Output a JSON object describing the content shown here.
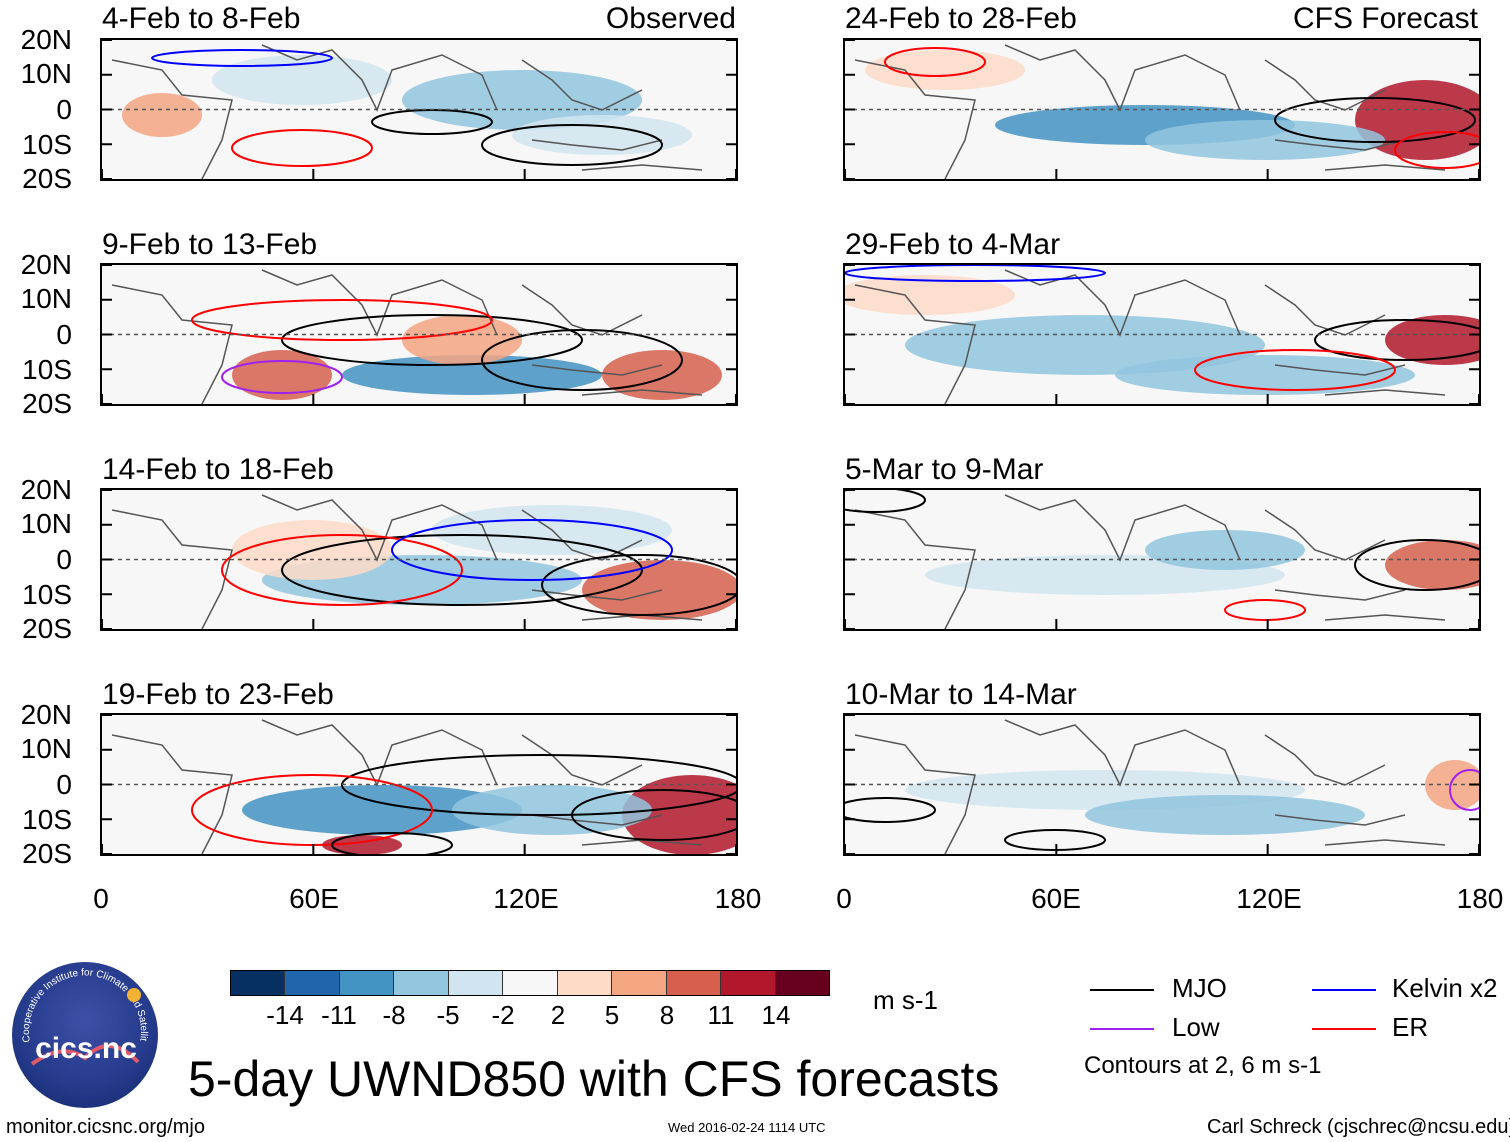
{
  "panels": [
    {
      "title": "4-Feb to 8-Feb",
      "tag": "Observed"
    },
    {
      "title": "24-Feb to 28-Feb",
      "tag": "CFS Forecast"
    },
    {
      "title": "9-Feb to 13-Feb",
      "tag": ""
    },
    {
      "title": "29-Feb to 4-Mar",
      "tag": ""
    },
    {
      "title": "14-Feb to 18-Feb",
      "tag": ""
    },
    {
      "title": "5-Mar to 9-Mar",
      "tag": ""
    },
    {
      "title": "19-Feb to 23-Feb",
      "tag": ""
    },
    {
      "title": "10-Mar to 14-Mar",
      "tag": ""
    }
  ],
  "lat_labels": [
    "20N",
    "10N",
    "0",
    "10S",
    "20S"
  ],
  "lon_labels": [
    "0",
    "60E",
    "120E",
    "180"
  ],
  "colorbar": {
    "levels": [
      "-14",
      "-11",
      "-8",
      "-5",
      "-2",
      "2",
      "5",
      "8",
      "11",
      "14"
    ],
    "colors": [
      "#053061",
      "#2166ac",
      "#4393c3",
      "#92c5de",
      "#d1e5f0",
      "#f7f7f7",
      "#fddbc7",
      "#f4a582",
      "#d6604d",
      "#b2182b",
      "#67001f"
    ],
    "units": "m s-1"
  },
  "legend": {
    "items": [
      {
        "label": "MJO",
        "color": "#000000"
      },
      {
        "label": "Kelvin x2",
        "color": "#0000ff"
      },
      {
        "label": "Low",
        "color": "#a020f0"
      },
      {
        "label": "ER",
        "color": "#ff0000"
      }
    ],
    "note": "Contours at 2, 6 m s-1"
  },
  "main_title": "5-day UWND850 with CFS forecasts",
  "logo_text": "cics.nc",
  "logo_ring_text": "Cooperative Institute for Climate and Satellites",
  "footer": {
    "left": "monitor.cicsnc.org/mjo",
    "center": "Wed 2016-02-24 1114 UTC",
    "right": "Carl Schreck (cjschrec@ncsu.edu)"
  }
}
